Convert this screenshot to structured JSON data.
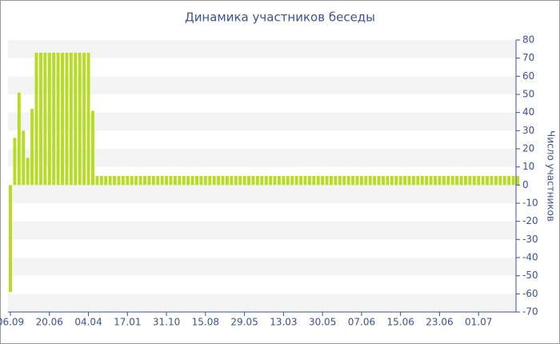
{
  "chart_data": {
    "type": "bar",
    "title": "Динамика участников беседы",
    "y_label": "Число участников",
    "color": "#b8dc26",
    "categories": [
      "06.09",
      null,
      null,
      null,
      null,
      null,
      null,
      null,
      null,
      "20.06",
      null,
      null,
      null,
      null,
      null,
      null,
      null,
      null,
      "04.04",
      null,
      null,
      null,
      null,
      null,
      null,
      null,
      null,
      "17.01",
      null,
      null,
      null,
      null,
      null,
      null,
      null,
      null,
      "31.10",
      null,
      null,
      null,
      null,
      null,
      null,
      null,
      null,
      "15.08",
      null,
      null,
      null,
      null,
      null,
      null,
      null,
      null,
      "29.05",
      null,
      null,
      null,
      null,
      null,
      null,
      null,
      null,
      "13.03",
      null,
      null,
      null,
      null,
      null,
      null,
      null,
      null,
      "30.05",
      null,
      null,
      null,
      null,
      null,
      null,
      null,
      null,
      "07.06",
      null,
      null,
      null,
      null,
      null,
      null,
      null,
      null,
      "15.06",
      null,
      null,
      null,
      null,
      null,
      null,
      null,
      null,
      "23.06",
      null,
      null,
      null,
      null,
      null,
      null,
      null,
      null,
      "01.07",
      null,
      null,
      null,
      null,
      null,
      null,
      null,
      null,
      null
    ],
    "values": [
      -59,
      26,
      51,
      30,
      15,
      42,
      73,
      73,
      73,
      73,
      73,
      73,
      73,
      73,
      73,
      73,
      73,
      73,
      73,
      41,
      5,
      5,
      5,
      5,
      5,
      5,
      5,
      5,
      5,
      5,
      5,
      5,
      5,
      5,
      5,
      5,
      5,
      5,
      5,
      5,
      5,
      5,
      5,
      5,
      5,
      5,
      5,
      5,
      5,
      5,
      5,
      5,
      5,
      5,
      5,
      5,
      5,
      5,
      5,
      5,
      5,
      5,
      5,
      5,
      5,
      5,
      5,
      5,
      5,
      5,
      5,
      5,
      5,
      5,
      5,
      5,
      5,
      5,
      5,
      5,
      5,
      5,
      5,
      5,
      5,
      5,
      5,
      5,
      5,
      5,
      5,
      5,
      5,
      5,
      5,
      5,
      5,
      5,
      5,
      5,
      5,
      5,
      5,
      5,
      5,
      5,
      5,
      5,
      5,
      5,
      5,
      5,
      5,
      5,
      5,
      5,
      5,
      5
    ],
    "ylim": [
      -70,
      80
    ],
    "yticks": [
      -70,
      -60,
      -50,
      -40,
      -30,
      -20,
      -10,
      0,
      10,
      20,
      30,
      40,
      50,
      60,
      70,
      80
    ],
    "grid": true,
    "y_axis_side": "right"
  }
}
